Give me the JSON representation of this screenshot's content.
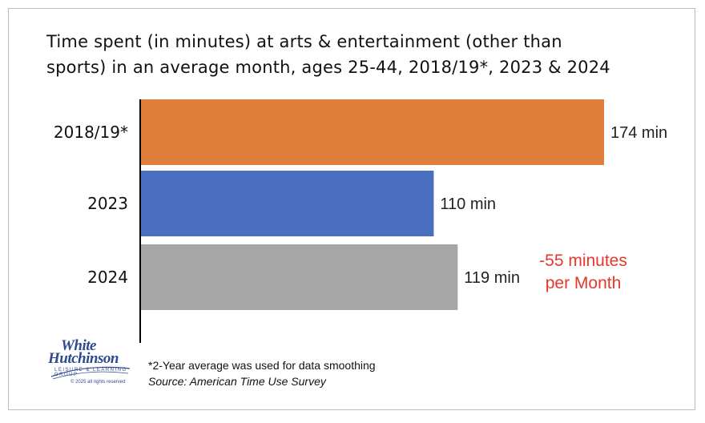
{
  "title": {
    "line1": "Time spent (in minutes) at arts & entertainment (other than",
    "line2": "sports) in an average month, ages 25-44, 2018/19*, 2023 & 2024"
  },
  "chart_data": {
    "type": "bar",
    "orientation": "horizontal",
    "title": "Time spent (in minutes) at arts & entertainment (other than sports) in an average month, ages 25-44, 2018/19*, 2023 & 2024",
    "categories": [
      "2018/19*",
      "2023",
      "2024"
    ],
    "values": [
      174,
      110,
      119
    ],
    "value_labels": [
      "174 min",
      "110 min",
      "119 min"
    ],
    "colors": [
      "#e07e3c",
      "#4a6fbf",
      "#a6a6a6"
    ],
    "xlim": [
      0,
      180
    ],
    "grid": false,
    "legend": "none"
  },
  "annotation": {
    "line1": "-55 minutes",
    "line2": "per Month",
    "color": "#e8362b"
  },
  "notes": {
    "footnote": "*2-Year average was used for data smoothing",
    "source": "Source: American Time Use Survey"
  },
  "logo": {
    "line1": "White",
    "line2": "Hutchinson",
    "tagline": "LEISURE & LEARNING GROUP",
    "copyright": "© 2025 all rights reserved"
  }
}
